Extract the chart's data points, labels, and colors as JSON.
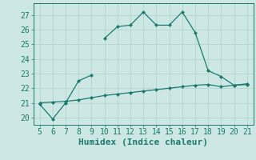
{
  "xlabel": "Humidex (Indice chaleur)",
  "xlim": [
    4.5,
    21.5
  ],
  "ylim": [
    19.5,
    27.8
  ],
  "yticks": [
    20,
    21,
    22,
    23,
    24,
    25,
    26,
    27
  ],
  "xticks": [
    5,
    6,
    7,
    8,
    9,
    10,
    11,
    12,
    13,
    14,
    15,
    16,
    17,
    18,
    19,
    20,
    21
  ],
  "line1_x": [
    5,
    6,
    7,
    8,
    9,
    null,
    10,
    11,
    12,
    13,
    14,
    15,
    16,
    17,
    18,
    19,
    20,
    21
  ],
  "line1_y": [
    20.9,
    19.9,
    21.0,
    22.5,
    22.9,
    null,
    25.4,
    26.2,
    26.3,
    27.2,
    26.3,
    26.3,
    27.2,
    25.8,
    23.2,
    22.8,
    22.2,
    22.3
  ],
  "line2_x": [
    5,
    6,
    7,
    8,
    9,
    10,
    11,
    12,
    13,
    14,
    15,
    16,
    17,
    18,
    19,
    20,
    21
  ],
  "line2_y": [
    21.0,
    21.05,
    21.1,
    21.2,
    21.35,
    21.5,
    21.6,
    21.7,
    21.8,
    21.9,
    22.0,
    22.1,
    22.2,
    22.25,
    22.1,
    22.2,
    22.25
  ],
  "line_color": "#1a7a6e",
  "bg_color": "#cde8e4",
  "grid_color": "#b8d8d4",
  "tick_fontsize": 7,
  "label_fontsize": 8
}
